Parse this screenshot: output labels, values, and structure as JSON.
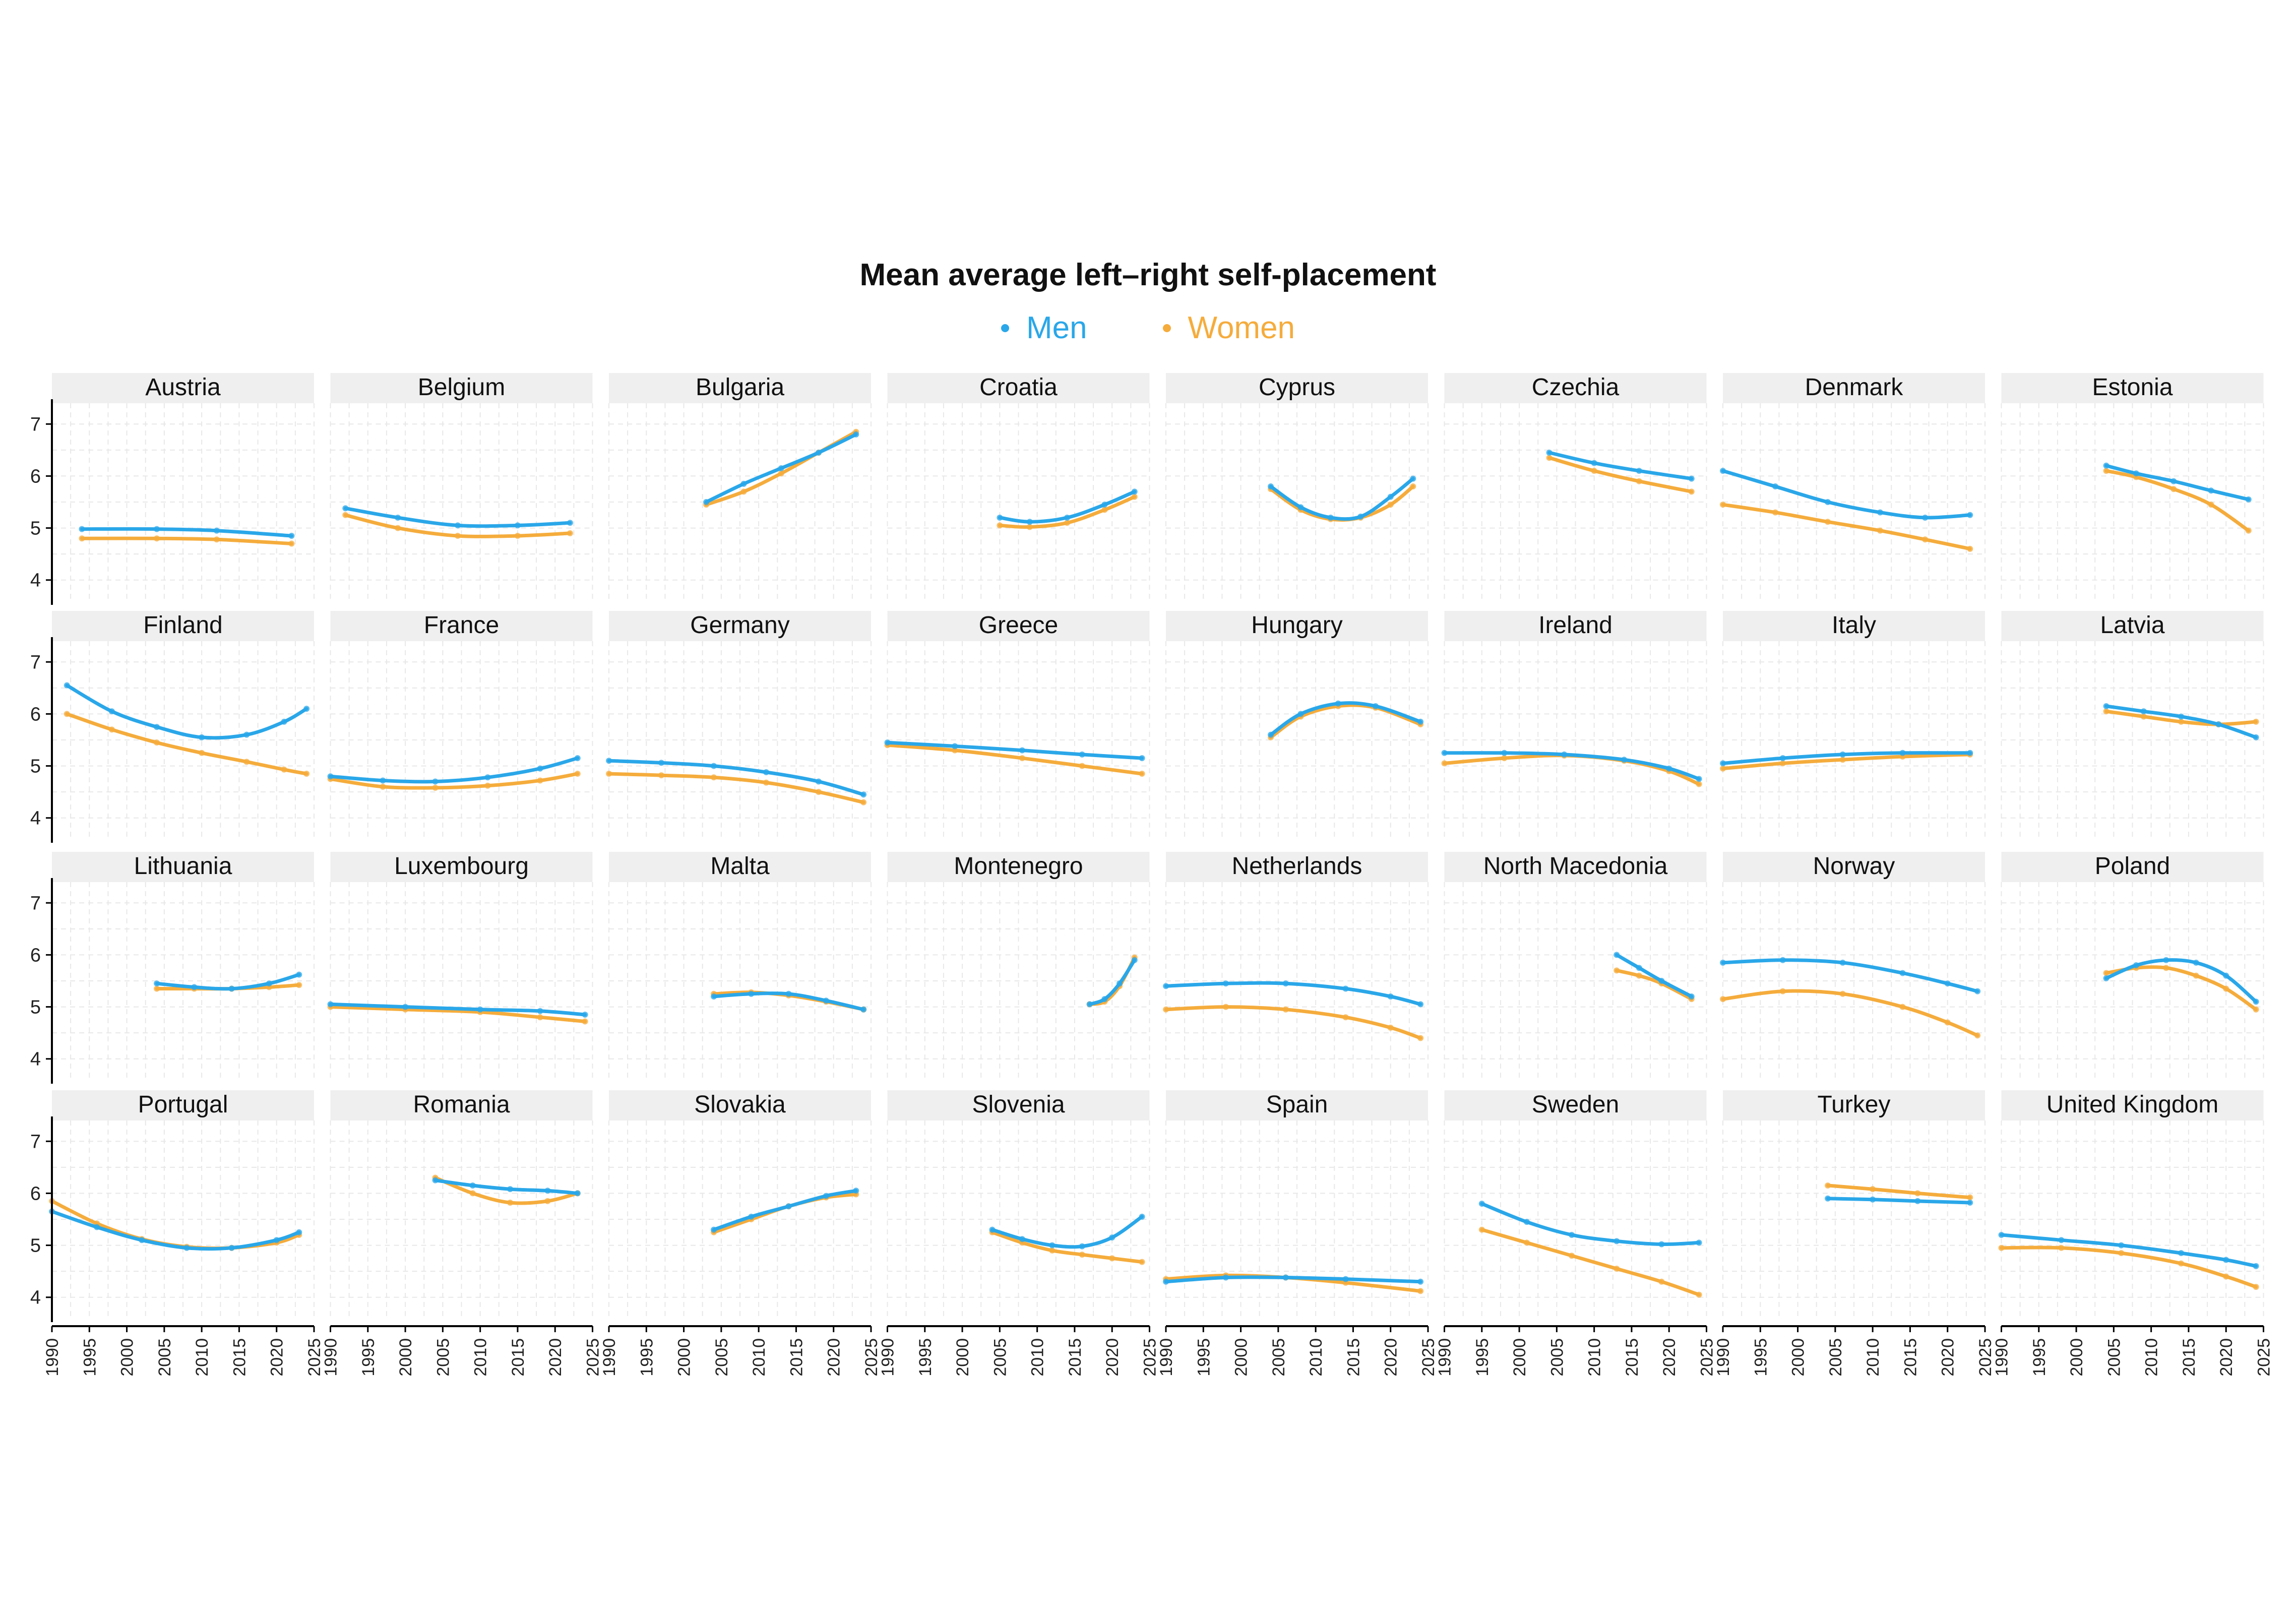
{
  "chart_data": {
    "type": "scatter",
    "title": "Mean average left–right self-placement",
    "legend": {
      "placement": "top-center",
      "entries": [
        "Men",
        "Women"
      ]
    },
    "colors": {
      "Men": "#2aa7e9",
      "Women": "#f5ac3c",
      "strip": "#efefef",
      "grid": "#e8e8e8",
      "axis": "#000000"
    },
    "grid": true,
    "xlim": [
      1990,
      2025
    ],
    "ylim": [
      3.6,
      7.4
    ],
    "x_ticks": [
      "1990",
      "1995",
      "2000",
      "2005",
      "2010",
      "2015",
      "2020",
      "2025"
    ],
    "y_ticks": [
      "4",
      "5",
      "6",
      "7"
    ],
    "facets": [
      {
        "name": "Austria",
        "men": {
          "x": [
            1994,
            2004,
            2012,
            2022
          ],
          "y": [
            4.98,
            4.98,
            4.95,
            4.85
          ]
        },
        "women": {
          "x": [
            1994,
            2004,
            2012,
            2022
          ],
          "y": [
            4.8,
            4.8,
            4.78,
            4.7
          ]
        }
      },
      {
        "name": "Belgium",
        "men": {
          "x": [
            1992,
            1999,
            2007,
            2015,
            2022
          ],
          "y": [
            5.38,
            5.2,
            5.05,
            5.05,
            5.1
          ]
        },
        "women": {
          "x": [
            1992,
            1999,
            2007,
            2015,
            2022
          ],
          "y": [
            5.25,
            5.0,
            4.85,
            4.85,
            4.9
          ]
        }
      },
      {
        "name": "Bulgaria",
        "men": {
          "x": [
            2003,
            2008,
            2013,
            2018,
            2023
          ],
          "y": [
            5.5,
            5.85,
            6.15,
            6.45,
            6.8
          ]
        },
        "women": {
          "x": [
            2003,
            2008,
            2013,
            2018,
            2023
          ],
          "y": [
            5.45,
            5.7,
            6.05,
            6.45,
            6.85
          ]
        }
      },
      {
        "name": "Croatia",
        "men": {
          "x": [
            2005,
            2009,
            2014,
            2019,
            2023
          ],
          "y": [
            5.2,
            5.12,
            5.2,
            5.45,
            5.7
          ]
        },
        "women": {
          "x": [
            2005,
            2009,
            2014,
            2019,
            2023
          ],
          "y": [
            5.05,
            5.02,
            5.1,
            5.35,
            5.6
          ]
        }
      },
      {
        "name": "Cyprus",
        "men": {
          "x": [
            2004,
            2008,
            2012,
            2016,
            2020,
            2023
          ],
          "y": [
            5.8,
            5.4,
            5.2,
            5.22,
            5.6,
            5.95
          ]
        },
        "women": {
          "x": [
            2004,
            2008,
            2012,
            2016,
            2020,
            2023
          ],
          "y": [
            5.75,
            5.35,
            5.17,
            5.2,
            5.45,
            5.8
          ]
        }
      },
      {
        "name": "Czechia",
        "men": {
          "x": [
            2004,
            2010,
            2016,
            2023
          ],
          "y": [
            6.45,
            6.25,
            6.1,
            5.95
          ]
        },
        "women": {
          "x": [
            2004,
            2010,
            2016,
            2023
          ],
          "y": [
            6.35,
            6.1,
            5.9,
            5.7
          ]
        }
      },
      {
        "name": "Denmark",
        "men": {
          "x": [
            1990,
            1997,
            2004,
            2011,
            2017,
            2023
          ],
          "y": [
            6.1,
            5.8,
            5.5,
            5.3,
            5.2,
            5.25
          ]
        },
        "women": {
          "x": [
            1990,
            1997,
            2004,
            2011,
            2017,
            2023
          ],
          "y": [
            5.45,
            5.3,
            5.12,
            4.95,
            4.78,
            4.6
          ]
        }
      },
      {
        "name": "Estonia",
        "men": {
          "x": [
            2004,
            2008,
            2013,
            2018,
            2023
          ],
          "y": [
            6.2,
            6.05,
            5.9,
            5.72,
            5.55
          ]
        },
        "women": {
          "x": [
            2004,
            2008,
            2013,
            2018,
            2023
          ],
          "y": [
            6.1,
            5.98,
            5.75,
            5.45,
            4.95
          ]
        }
      },
      {
        "name": "Finland",
        "men": {
          "x": [
            1992,
            1998,
            2004,
            2010,
            2016,
            2021,
            2024
          ],
          "y": [
            6.55,
            6.05,
            5.75,
            5.55,
            5.6,
            5.85,
            6.1
          ]
        },
        "women": {
          "x": [
            1992,
            1998,
            2004,
            2010,
            2016,
            2021,
            2024
          ],
          "y": [
            6.0,
            5.7,
            5.45,
            5.25,
            5.08,
            4.93,
            4.85
          ]
        }
      },
      {
        "name": "France",
        "men": {
          "x": [
            1990,
            1997,
            2004,
            2011,
            2018,
            2023
          ],
          "y": [
            4.8,
            4.72,
            4.7,
            4.78,
            4.95,
            5.15
          ]
        },
        "women": {
          "x": [
            1990,
            1997,
            2004,
            2011,
            2018,
            2023
          ],
          "y": [
            4.75,
            4.6,
            4.58,
            4.62,
            4.72,
            4.85
          ]
        }
      },
      {
        "name": "Germany",
        "men": {
          "x": [
            1990,
            1997,
            2004,
            2011,
            2018,
            2024
          ],
          "y": [
            5.1,
            5.06,
            5.0,
            4.88,
            4.7,
            4.45
          ]
        },
        "women": {
          "x": [
            1990,
            1997,
            2004,
            2011,
            2018,
            2024
          ],
          "y": [
            4.85,
            4.82,
            4.78,
            4.68,
            4.5,
            4.3
          ]
        }
      },
      {
        "name": "Greece",
        "men": {
          "x": [
            1990,
            1999,
            2008,
            2016,
            2024
          ],
          "y": [
            5.45,
            5.38,
            5.3,
            5.22,
            5.15
          ]
        },
        "women": {
          "x": [
            1990,
            1999,
            2008,
            2016,
            2024
          ],
          "y": [
            5.4,
            5.3,
            5.15,
            5.0,
            4.85
          ]
        }
      },
      {
        "name": "Hungary",
        "men": {
          "x": [
            2004,
            2008,
            2013,
            2018,
            2024
          ],
          "y": [
            5.6,
            6.0,
            6.2,
            6.15,
            5.85
          ]
        },
        "women": {
          "x": [
            2004,
            2008,
            2013,
            2018,
            2024
          ],
          "y": [
            5.55,
            5.95,
            6.15,
            6.12,
            5.8
          ]
        }
      },
      {
        "name": "Ireland",
        "men": {
          "x": [
            1990,
            1998,
            2006,
            2014,
            2020,
            2024
          ],
          "y": [
            5.25,
            5.25,
            5.22,
            5.12,
            4.95,
            4.75
          ]
        },
        "women": {
          "x": [
            1990,
            1998,
            2006,
            2014,
            2020,
            2024
          ],
          "y": [
            5.05,
            5.15,
            5.2,
            5.1,
            4.9,
            4.65
          ]
        }
      },
      {
        "name": "Italy",
        "men": {
          "x": [
            1990,
            1998,
            2006,
            2014,
            2023
          ],
          "y": [
            5.05,
            5.15,
            5.22,
            5.25,
            5.25
          ]
        },
        "women": {
          "x": [
            1990,
            1998,
            2006,
            2014,
            2023
          ],
          "y": [
            4.95,
            5.05,
            5.12,
            5.18,
            5.22
          ]
        }
      },
      {
        "name": "Latvia",
        "men": {
          "x": [
            2004,
            2009,
            2014,
            2019,
            2024
          ],
          "y": [
            6.15,
            6.05,
            5.95,
            5.8,
            5.55
          ]
        },
        "women": {
          "x": [
            2004,
            2009,
            2014,
            2019,
            2024
          ],
          "y": [
            6.05,
            5.95,
            5.85,
            5.8,
            5.85
          ]
        }
      },
      {
        "name": "Lithuania",
        "men": {
          "x": [
            2004,
            2009,
            2014,
            2019,
            2023
          ],
          "y": [
            5.45,
            5.38,
            5.35,
            5.45,
            5.62
          ]
        },
        "women": {
          "x": [
            2004,
            2009,
            2014,
            2019,
            2023
          ],
          "y": [
            5.35,
            5.35,
            5.35,
            5.38,
            5.42
          ]
        }
      },
      {
        "name": "Luxembourg",
        "men": {
          "x": [
            1990,
            2000,
            2010,
            2018,
            2024
          ],
          "y": [
            5.05,
            5.0,
            4.95,
            4.92,
            4.85
          ]
        },
        "women": {
          "x": [
            1990,
            2000,
            2010,
            2018,
            2024
          ],
          "y": [
            5.0,
            4.95,
            4.9,
            4.8,
            4.72
          ]
        }
      },
      {
        "name": "Malta",
        "men": {
          "x": [
            2004,
            2009,
            2014,
            2019,
            2024
          ],
          "y": [
            5.2,
            5.25,
            5.25,
            5.12,
            4.95
          ]
        },
        "women": {
          "x": [
            2004,
            2009,
            2014,
            2019,
            2024
          ],
          "y": [
            5.25,
            5.28,
            5.22,
            5.1,
            4.95
          ]
        }
      },
      {
        "name": "Montenegro",
        "men": {
          "x": [
            2017,
            2019,
            2021,
            2023
          ],
          "y": [
            5.05,
            5.15,
            5.45,
            5.9
          ]
        },
        "women": {
          "x": [
            2017,
            2019,
            2021,
            2023
          ],
          "y": [
            5.05,
            5.1,
            5.4,
            5.95
          ]
        }
      },
      {
        "name": "Netherlands",
        "men": {
          "x": [
            1990,
            1998,
            2006,
            2014,
            2020,
            2024
          ],
          "y": [
            5.4,
            5.45,
            5.45,
            5.35,
            5.2,
            5.05
          ]
        },
        "women": {
          "x": [
            1990,
            1998,
            2006,
            2014,
            2020,
            2024
          ],
          "y": [
            4.95,
            5.0,
            4.95,
            4.8,
            4.6,
            4.4
          ]
        }
      },
      {
        "name": "North Macedonia",
        "men": {
          "x": [
            2013,
            2016,
            2019,
            2023
          ],
          "y": [
            6.0,
            5.75,
            5.5,
            5.2
          ]
        },
        "women": {
          "x": [
            2013,
            2016,
            2019,
            2023
          ],
          "y": [
            5.7,
            5.6,
            5.45,
            5.15
          ]
        }
      },
      {
        "name": "Norway",
        "men": {
          "x": [
            1990,
            1998,
            2006,
            2014,
            2020,
            2024
          ],
          "y": [
            5.85,
            5.9,
            5.85,
            5.65,
            5.45,
            5.3
          ]
        },
        "women": {
          "x": [
            1990,
            1998,
            2006,
            2014,
            2020,
            2024
          ],
          "y": [
            5.15,
            5.3,
            5.25,
            5.0,
            4.7,
            4.45
          ]
        }
      },
      {
        "name": "Poland",
        "men": {
          "x": [
            2004,
            2008,
            2012,
            2016,
            2020,
            2024
          ],
          "y": [
            5.55,
            5.8,
            5.9,
            5.85,
            5.6,
            5.1
          ]
        },
        "women": {
          "x": [
            2004,
            2008,
            2012,
            2016,
            2020,
            2024
          ],
          "y": [
            5.65,
            5.75,
            5.75,
            5.6,
            5.35,
            4.95
          ]
        }
      },
      {
        "name": "Portugal",
        "men": {
          "x": [
            1990,
            1996,
            2002,
            2008,
            2014,
            2020,
            2023
          ],
          "y": [
            5.65,
            5.35,
            5.1,
            4.95,
            4.95,
            5.1,
            5.25
          ]
        },
        "women": {
          "x": [
            1990,
            1996,
            2002,
            2008,
            2014,
            2020,
            2023
          ],
          "y": [
            5.85,
            5.42,
            5.12,
            4.97,
            4.95,
            5.05,
            5.2
          ]
        }
      },
      {
        "name": "Romania",
        "men": {
          "x": [
            2004,
            2009,
            2014,
            2019,
            2023
          ],
          "y": [
            6.25,
            6.15,
            6.08,
            6.05,
            6.0
          ]
        },
        "women": {
          "x": [
            2004,
            2009,
            2014,
            2019,
            2023
          ],
          "y": [
            6.3,
            6.0,
            5.82,
            5.85,
            6.0
          ]
        }
      },
      {
        "name": "Slovakia",
        "men": {
          "x": [
            2004,
            2009,
            2014,
            2019,
            2023
          ],
          "y": [
            5.3,
            5.55,
            5.75,
            5.95,
            6.05
          ]
        },
        "women": {
          "x": [
            2004,
            2009,
            2014,
            2019,
            2023
          ],
          "y": [
            5.25,
            5.5,
            5.75,
            5.92,
            5.98
          ]
        }
      },
      {
        "name": "Slovenia",
        "men": {
          "x": [
            2004,
            2008,
            2012,
            2016,
            2020,
            2024
          ],
          "y": [
            5.3,
            5.12,
            5.0,
            4.98,
            5.15,
            5.55
          ]
        },
        "women": {
          "x": [
            2004,
            2008,
            2012,
            2016,
            2020,
            2024
          ],
          "y": [
            5.25,
            5.05,
            4.9,
            4.82,
            4.75,
            4.68
          ]
        }
      },
      {
        "name": "Spain",
        "men": {
          "x": [
            1990,
            1998,
            2006,
            2014,
            2024
          ],
          "y": [
            4.3,
            4.38,
            4.38,
            4.35,
            4.3
          ]
        },
        "women": {
          "x": [
            1990,
            1998,
            2006,
            2014,
            2024
          ],
          "y": [
            4.35,
            4.42,
            4.38,
            4.28,
            4.12
          ]
        }
      },
      {
        "name": "Sweden",
        "men": {
          "x": [
            1995,
            2001,
            2007,
            2013,
            2019,
            2024
          ],
          "y": [
            5.8,
            5.45,
            5.2,
            5.08,
            5.02,
            5.05
          ]
        },
        "women": {
          "x": [
            1995,
            2001,
            2007,
            2013,
            2019,
            2024
          ],
          "y": [
            5.3,
            5.05,
            4.8,
            4.55,
            4.3,
            4.05
          ]
        }
      },
      {
        "name": "Turkey",
        "men": {
          "x": [
            2004,
            2010,
            2016,
            2023
          ],
          "y": [
            5.9,
            5.88,
            5.85,
            5.82
          ]
        },
        "women": {
          "x": [
            2004,
            2010,
            2016,
            2023
          ],
          "y": [
            6.15,
            6.08,
            6.0,
            5.92
          ]
        }
      },
      {
        "name": "United Kingdom",
        "men": {
          "x": [
            1990,
            1998,
            2006,
            2014,
            2020,
            2024
          ],
          "y": [
            5.2,
            5.1,
            5.0,
            4.85,
            4.72,
            4.6
          ]
        },
        "women": {
          "x": [
            1990,
            1998,
            2006,
            2014,
            2020,
            2024
          ],
          "y": [
            4.95,
            4.95,
            4.85,
            4.65,
            4.4,
            4.2
          ]
        }
      }
    ]
  }
}
